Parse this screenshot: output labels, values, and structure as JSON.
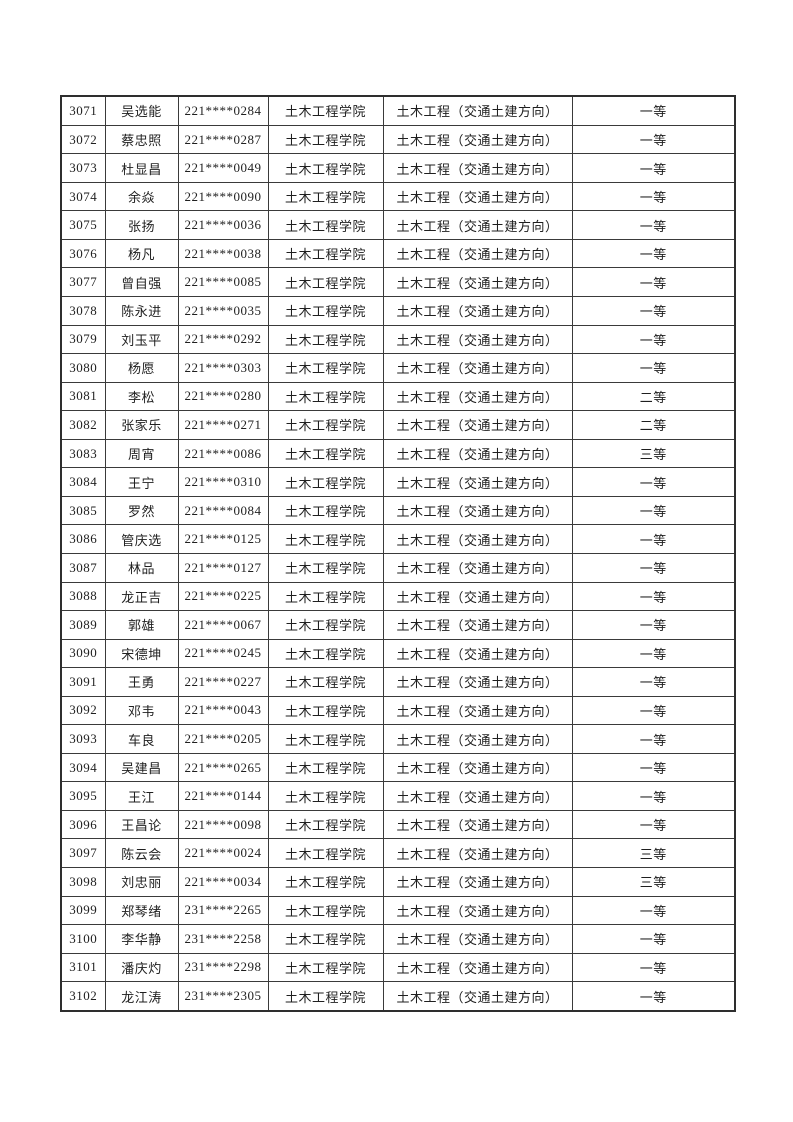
{
  "table": {
    "column_keys": [
      "id",
      "name",
      "student_no",
      "college",
      "major",
      "grade"
    ],
    "rows": [
      {
        "id": "3071",
        "name": "吴选能",
        "student_no": "221****0284",
        "college": "土木工程学院",
        "major": "土木工程（交通土建方向）",
        "grade": "一等"
      },
      {
        "id": "3072",
        "name": "蔡忠照",
        "student_no": "221****0287",
        "college": "土木工程学院",
        "major": "土木工程（交通土建方向）",
        "grade": "一等"
      },
      {
        "id": "3073",
        "name": "杜显昌",
        "student_no": "221****0049",
        "college": "土木工程学院",
        "major": "土木工程（交通土建方向）",
        "grade": "一等"
      },
      {
        "id": "3074",
        "name": "余焱",
        "student_no": "221****0090",
        "college": "土木工程学院",
        "major": "土木工程（交通土建方向）",
        "grade": "一等"
      },
      {
        "id": "3075",
        "name": "张扬",
        "student_no": "221****0036",
        "college": "土木工程学院",
        "major": "土木工程（交通土建方向）",
        "grade": "一等"
      },
      {
        "id": "3076",
        "name": "杨凡",
        "student_no": "221****0038",
        "college": "土木工程学院",
        "major": "土木工程（交通土建方向）",
        "grade": "一等"
      },
      {
        "id": "3077",
        "name": "曾自强",
        "student_no": "221****0085",
        "college": "土木工程学院",
        "major": "土木工程（交通土建方向）",
        "grade": "一等"
      },
      {
        "id": "3078",
        "name": "陈永进",
        "student_no": "221****0035",
        "college": "土木工程学院",
        "major": "土木工程（交通土建方向）",
        "grade": "一等"
      },
      {
        "id": "3079",
        "name": "刘玉平",
        "student_no": "221****0292",
        "college": "土木工程学院",
        "major": "土木工程（交通土建方向）",
        "grade": "一等"
      },
      {
        "id": "3080",
        "name": "杨愿",
        "student_no": "221****0303",
        "college": "土木工程学院",
        "major": "土木工程（交通土建方向）",
        "grade": "一等"
      },
      {
        "id": "3081",
        "name": "李松",
        "student_no": "221****0280",
        "college": "土木工程学院",
        "major": "土木工程（交通土建方向）",
        "grade": "二等"
      },
      {
        "id": "3082",
        "name": "张家乐",
        "student_no": "221****0271",
        "college": "土木工程学院",
        "major": "土木工程（交通土建方向）",
        "grade": "二等"
      },
      {
        "id": "3083",
        "name": "周宵",
        "student_no": "221****0086",
        "college": "土木工程学院",
        "major": "土木工程（交通土建方向）",
        "grade": "三等"
      },
      {
        "id": "3084",
        "name": "王宁",
        "student_no": "221****0310",
        "college": "土木工程学院",
        "major": "土木工程（交通土建方向）",
        "grade": "一等"
      },
      {
        "id": "3085",
        "name": "罗然",
        "student_no": "221****0084",
        "college": "土木工程学院",
        "major": "土木工程（交通土建方向）",
        "grade": "一等"
      },
      {
        "id": "3086",
        "name": "管庆选",
        "student_no": "221****0125",
        "college": "土木工程学院",
        "major": "土木工程（交通土建方向）",
        "grade": "一等"
      },
      {
        "id": "3087",
        "name": "林品",
        "student_no": "221****0127",
        "college": "土木工程学院",
        "major": "土木工程（交通土建方向）",
        "grade": "一等"
      },
      {
        "id": "3088",
        "name": "龙正吉",
        "student_no": "221****0225",
        "college": "土木工程学院",
        "major": "土木工程（交通土建方向）",
        "grade": "一等"
      },
      {
        "id": "3089",
        "name": "郭雄",
        "student_no": "221****0067",
        "college": "土木工程学院",
        "major": "土木工程（交通土建方向）",
        "grade": "一等"
      },
      {
        "id": "3090",
        "name": "宋德坤",
        "student_no": "221****0245",
        "college": "土木工程学院",
        "major": "土木工程（交通土建方向）",
        "grade": "一等"
      },
      {
        "id": "3091",
        "name": "王勇",
        "student_no": "221****0227",
        "college": "土木工程学院",
        "major": "土木工程（交通土建方向）",
        "grade": "一等"
      },
      {
        "id": "3092",
        "name": "邓韦",
        "student_no": "221****0043",
        "college": "土木工程学院",
        "major": "土木工程（交通土建方向）",
        "grade": "一等"
      },
      {
        "id": "3093",
        "name": "车良",
        "student_no": "221****0205",
        "college": "土木工程学院",
        "major": "土木工程（交通土建方向）",
        "grade": "一等"
      },
      {
        "id": "3094",
        "name": "吴建昌",
        "student_no": "221****0265",
        "college": "土木工程学院",
        "major": "土木工程（交通土建方向）",
        "grade": "一等"
      },
      {
        "id": "3095",
        "name": "王江",
        "student_no": "221****0144",
        "college": "土木工程学院",
        "major": "土木工程（交通土建方向）",
        "grade": "一等"
      },
      {
        "id": "3096",
        "name": "王昌论",
        "student_no": "221****0098",
        "college": "土木工程学院",
        "major": "土木工程（交通土建方向）",
        "grade": "一等"
      },
      {
        "id": "3097",
        "name": "陈云会",
        "student_no": "221****0024",
        "college": "土木工程学院",
        "major": "土木工程（交通土建方向）",
        "grade": "三等"
      },
      {
        "id": "3098",
        "name": "刘忠丽",
        "student_no": "221****0034",
        "college": "土木工程学院",
        "major": "土木工程（交通土建方向）",
        "grade": "三等"
      },
      {
        "id": "3099",
        "name": "郑琴绪",
        "student_no": "231****2265",
        "college": "土木工程学院",
        "major": "土木工程（交通土建方向）",
        "grade": "一等"
      },
      {
        "id": "3100",
        "name": "李华静",
        "student_no": "231****2258",
        "college": "土木工程学院",
        "major": "土木工程（交通土建方向）",
        "grade": "一等"
      },
      {
        "id": "3101",
        "name": "潘庆灼",
        "student_no": "231****2298",
        "college": "土木工程学院",
        "major": "土木工程（交通土建方向）",
        "grade": "一等"
      },
      {
        "id": "3102",
        "name": "龙江涛",
        "student_no": "231****2305",
        "college": "土木工程学院",
        "major": "土木工程（交通土建方向）",
        "grade": "一等"
      }
    ]
  }
}
